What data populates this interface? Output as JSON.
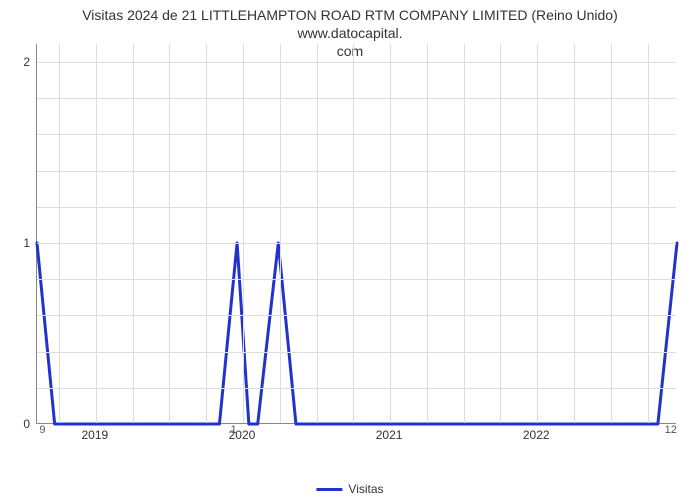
{
  "chart": {
    "type": "line",
    "title_line1": "Visitas 2024 de 21 LITTLEHAMPTON ROAD RTM COMPANY LIMITED (Reino Unido) www.datocapital.",
    "title_line2": "com",
    "title_fontsize": 14,
    "title_color": "#333333",
    "background_color": "#ffffff",
    "grid_color": "#dddddd",
    "axis_color": "#888888",
    "x": {
      "min": 2018.6,
      "max": 2022.95,
      "ticks": [
        2019,
        2020,
        2021,
        2022
      ],
      "tick_labels": [
        "2019",
        "2020",
        "2021",
        "2022"
      ],
      "minor_gridlines": [
        2018.75,
        2019.0,
        2019.25,
        2019.5,
        2019.75,
        2020.0,
        2020.25,
        2020.5,
        2020.75,
        2021.0,
        2021.25,
        2021.5,
        2021.75,
        2022.0,
        2022.25,
        2022.5,
        2022.75
      ]
    },
    "y": {
      "min": 0,
      "max": 2.1,
      "ticks": [
        0,
        1,
        2
      ],
      "tick_labels": [
        "0",
        "1",
        "2"
      ],
      "minor_gridlines": [
        0.2,
        0.4,
        0.6,
        0.8,
        1.0,
        1.2,
        1.4,
        1.6,
        1.8,
        2.0
      ]
    },
    "secondary_ticks": [
      {
        "label": "9",
        "x": 2018.65,
        "y_below_axis": true
      },
      {
        "label": "1",
        "x": 2019.95,
        "y_below_axis": true
      },
      {
        "label": "12",
        "x": 2022.9,
        "y_below_axis": true
      }
    ],
    "series": {
      "name": "Visitas",
      "color": "#2233cc",
      "line_width": 3,
      "points": [
        [
          2018.6,
          1.0
        ],
        [
          2018.72,
          0.0
        ],
        [
          2019.84,
          0.0
        ],
        [
          2019.96,
          1.0
        ],
        [
          2020.04,
          0.0
        ],
        [
          2020.1,
          0.0
        ],
        [
          2020.24,
          1.0
        ],
        [
          2020.36,
          0.0
        ],
        [
          2022.82,
          0.0
        ],
        [
          2022.95,
          1.0
        ]
      ]
    },
    "legend": {
      "position": "bottom-center",
      "label": "Visitas"
    }
  }
}
